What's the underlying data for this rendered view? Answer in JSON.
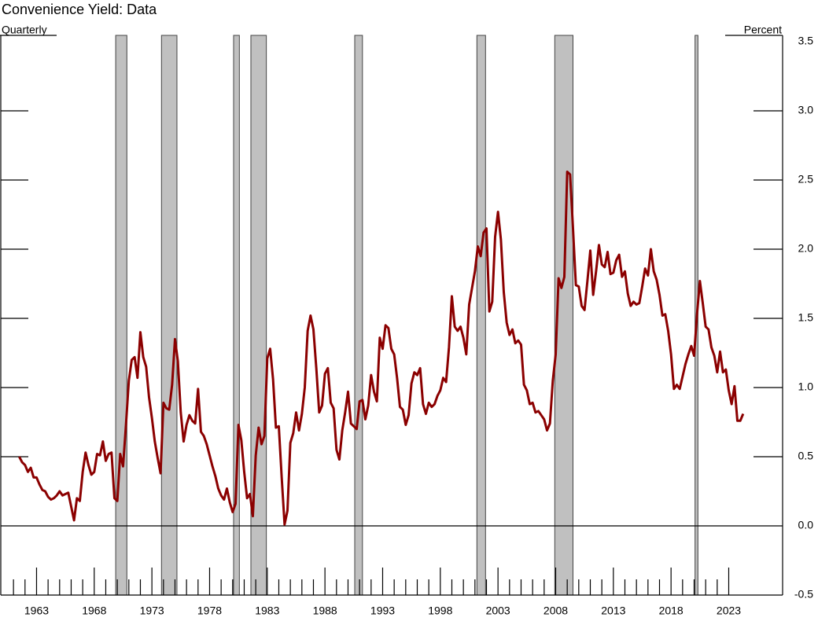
{
  "chart_data": {
    "type": "line",
    "title": "Convenience Yield: Data",
    "frequency_label": "Quarterly",
    "unit_label": "Percent",
    "xlim": [
      1959.9,
      2027.67
    ],
    "xticks": [
      1963,
      1968,
      1973,
      1978,
      1983,
      1988,
      1993,
      1998,
      2003,
      2008,
      2013,
      2018,
      2023
    ],
    "xticks_minor": [
      1961,
      1962,
      1963,
      1964,
      1965,
      1966,
      1967,
      1968,
      1969,
      1970,
      1971,
      1972,
      1973,
      1974,
      1975,
      1976,
      1977,
      1978,
      1979,
      1980,
      1981,
      1982,
      1983,
      1984,
      1985,
      1986,
      1987,
      1988,
      1989,
      1990,
      1991,
      1992,
      1993,
      1994,
      1995,
      1996,
      1997,
      1998,
      1999,
      2000,
      2001,
      2002,
      2003,
      2004,
      2005,
      2006,
      2007,
      2008,
      2009,
      2010,
      2011,
      2012,
      2013,
      2014,
      2015,
      2016,
      2017,
      2018,
      2019,
      2020,
      2021,
      2022,
      2023
    ],
    "ylim": [
      -0.5,
      3.5
    ],
    "yticks": [
      -0.5,
      {
        "value": 0,
        "label": "0.0"
      },
      0.5,
      {
        "value": 1,
        "label": "1.0"
      },
      1.5,
      {
        "value": 2,
        "label": "2.0"
      },
      2.5,
      {
        "value": 3,
        "label": "3.0"
      },
      3.5
    ],
    "recessions": [
      [
        1969.86,
        1970.83
      ],
      [
        1973.83,
        1975.17
      ],
      [
        1980.08,
        1980.58
      ],
      [
        1981.58,
        1982.92
      ],
      [
        1990.58,
        1991.25
      ],
      [
        2001.17,
        2001.92
      ],
      [
        2007.92,
        2009.5
      ],
      [
        2020.08,
        2020.33
      ]
    ],
    "recession_color": "#c0c0c0",
    "x": [
      1961.5,
      1961.75,
      1962,
      1962.25,
      1962.5,
      1962.75,
      1963,
      1963.25,
      1963.5,
      1963.75,
      1964,
      1964.25,
      1964.5,
      1964.75,
      1965,
      1965.25,
      1965.5,
      1965.75,
      1966,
      1966.25,
      1966.5,
      1966.75,
      1967,
      1967.25,
      1967.5,
      1967.75,
      1968,
      1968.25,
      1968.5,
      1968.75,
      1969,
      1969.25,
      1969.5,
      1969.75,
      1970,
      1970.25,
      1970.5,
      1970.75,
      1971,
      1971.25,
      1971.5,
      1971.75,
      1972,
      1972.25,
      1972.5,
      1972.75,
      1973,
      1973.25,
      1973.5,
      1973.75,
      1974,
      1974.25,
      1974.5,
      1974.75,
      1975,
      1975.25,
      1975.5,
      1975.75,
      1976,
      1976.25,
      1976.5,
      1976.75,
      1977,
      1977.25,
      1977.5,
      1977.75,
      1978,
      1978.25,
      1978.5,
      1978.75,
      1979,
      1979.25,
      1979.5,
      1979.75,
      1980,
      1980.25,
      1980.5,
      1980.75,
      1981,
      1981.25,
      1981.5,
      1981.75,
      1982,
      1982.25,
      1982.5,
      1982.75,
      1983,
      1983.25,
      1983.5,
      1983.75,
      1984,
      1984.25,
      1984.5,
      1984.75,
      1985,
      1985.25,
      1985.5,
      1985.75,
      1986,
      1986.25,
      1986.5,
      1986.75,
      1987,
      1987.25,
      1987.5,
      1987.75,
      1988,
      1988.25,
      1988.5,
      1988.75,
      1989,
      1989.25,
      1989.5,
      1989.75,
      1990,
      1990.25,
      1990.5,
      1990.75,
      1991,
      1991.25,
      1991.5,
      1991.75,
      1992,
      1992.25,
      1992.5,
      1992.75,
      1993,
      1993.25,
      1993.5,
      1993.75,
      1994,
      1994.25,
      1994.5,
      1994.75,
      1995,
      1995.25,
      1995.5,
      1995.75,
      1996,
      1996.25,
      1996.5,
      1996.75,
      1997,
      1997.25,
      1997.5,
      1997.75,
      1998,
      1998.25,
      1998.5,
      1998.75,
      1999,
      1999.25,
      1999.5,
      1999.75,
      2000,
      2000.25,
      2000.5,
      2000.75,
      2001,
      2001.25,
      2001.5,
      2001.75,
      2002,
      2002.25,
      2002.5,
      2002.75,
      2003,
      2003.25,
      2003.5,
      2003.75,
      2004,
      2004.25,
      2004.5,
      2004.75,
      2005,
      2005.25,
      2005.5,
      2005.75,
      2006,
      2006.25,
      2006.5,
      2006.75,
      2007,
      2007.25,
      2007.5,
      2007.75,
      2008,
      2008.25,
      2008.5,
      2008.75,
      2009,
      2009.25,
      2009.5,
      2009.75,
      2010,
      2010.25,
      2010.5,
      2010.75,
      2011,
      2011.25,
      2011.5,
      2011.75,
      2012,
      2012.25,
      2012.5,
      2012.75,
      2013,
      2013.25,
      2013.5,
      2013.75,
      2014,
      2014.25,
      2014.5,
      2014.75,
      2015,
      2015.25,
      2015.5,
      2015.75,
      2016,
      2016.25,
      2016.5,
      2016.75,
      2017,
      2017.25,
      2017.5,
      2017.75,
      2018,
      2018.25,
      2018.5,
      2018.75,
      2019,
      2019.25,
      2019.5,
      2019.75,
      2020,
      2020.25,
      2020.5,
      2020.75,
      2021,
      2021.25,
      2021.5,
      2021.75,
      2022,
      2022.25,
      2022.5,
      2022.75,
      2023,
      2023.25,
      2023.5,
      2023.75,
      2024,
      2024.25
    ],
    "series": [
      {
        "name": "Convenience yield",
        "color": "#8b0000",
        "values": [
          0.5,
          0.46,
          0.44,
          0.39,
          0.42,
          0.35,
          0.35,
          0.3,
          0.26,
          0.25,
          0.21,
          0.19,
          0.2,
          0.22,
          0.25,
          0.22,
          0.23,
          0.24,
          0.14,
          0.04,
          0.2,
          0.18,
          0.39,
          0.53,
          0.44,
          0.37,
          0.39,
          0.52,
          0.51,
          0.61,
          0.47,
          0.52,
          0.53,
          0.2,
          0.18,
          0.52,
          0.43,
          0.73,
          1.05,
          1.2,
          1.22,
          1.07,
          1.4,
          1.22,
          1.15,
          0.93,
          0.78,
          0.61,
          0.49,
          0.38,
          0.89,
          0.85,
          0.84,
          1.02,
          1.35,
          1.19,
          0.82,
          0.61,
          0.73,
          0.8,
          0.76,
          0.74,
          0.99,
          0.68,
          0.65,
          0.59,
          0.51,
          0.43,
          0.36,
          0.27,
          0.22,
          0.19,
          0.27,
          0.17,
          0.1,
          0.16,
          0.73,
          0.62,
          0.39,
          0.2,
          0.23,
          0.07,
          0.51,
          0.71,
          0.59,
          0.65,
          1.21,
          1.28,
          1.06,
          0.71,
          0.72,
          0.35,
          0.01,
          0.11,
          0.6,
          0.67,
          0.82,
          0.69,
          0.81,
          1.0,
          1.41,
          1.52,
          1.42,
          1.14,
          0.82,
          0.87,
          1.1,
          1.14,
          0.89,
          0.85,
          0.55,
          0.48,
          0.69,
          0.82,
          0.97,
          0.74,
          0.72,
          0.7,
          0.9,
          0.91,
          0.77,
          0.87,
          1.09,
          0.97,
          0.9,
          1.36,
          1.28,
          1.45,
          1.43,
          1.28,
          1.24,
          1.07,
          0.86,
          0.84,
          0.73,
          0.8,
          1.03,
          1.11,
          1.09,
          1.14,
          0.88,
          0.81,
          0.89,
          0.86,
          0.88,
          0.94,
          0.98,
          1.07,
          1.04,
          1.29,
          1.66,
          1.44,
          1.41,
          1.44,
          1.36,
          1.24,
          1.6,
          1.72,
          1.84,
          2.02,
          1.95,
          2.12,
          2.15,
          1.55,
          1.62,
          2.09,
          2.27,
          2.07,
          1.69,
          1.47,
          1.38,
          1.42,
          1.32,
          1.34,
          1.31,
          1.02,
          0.98,
          0.88,
          0.89,
          0.82,
          0.83,
          0.8,
          0.77,
          0.69,
          0.74,
          1.05,
          1.24,
          1.79,
          1.72,
          1.8,
          2.56,
          2.54,
          2.15,
          1.74,
          1.73,
          1.59,
          1.56,
          1.77,
          1.99,
          1.67,
          1.84,
          2.03,
          1.89,
          1.87,
          1.98,
          1.82,
          1.83,
          1.92,
          1.96,
          1.8,
          1.84,
          1.68,
          1.59,
          1.62,
          1.6,
          1.61,
          1.73,
          1.86,
          1.81,
          2.0,
          1.84,
          1.78,
          1.67,
          1.52,
          1.53,
          1.41,
          1.24,
          0.99,
          1.02,
          0.99,
          1.08,
          1.17,
          1.24,
          1.3,
          1.23,
          1.53,
          1.77,
          1.61,
          1.44,
          1.42,
          1.29,
          1.23,
          1.11,
          1.26,
          1.11,
          1.13,
          0.98,
          0.88,
          1.01,
          0.76,
          0.76,
          0.81
        ]
      }
    ]
  }
}
